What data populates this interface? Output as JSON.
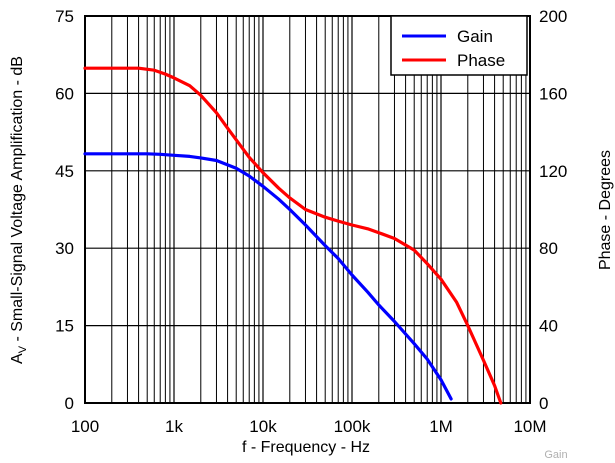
{
  "chart_data": {
    "type": "line",
    "xlabel": "f - Frequency - Hz",
    "ylabel_left": "A",
    "ylabel_left_sub": "V",
    "ylabel_left_rest": " - Small-Signal Voltage Amplification - dB",
    "ylabel_right": "Phase - Degrees",
    "x_scale": "log",
    "xlim": [
      100,
      10000000
    ],
    "ylim_left": [
      0,
      75
    ],
    "ylim_right": [
      0,
      200
    ],
    "x_ticks": [
      {
        "value": 100,
        "label": "100"
      },
      {
        "value": 1000,
        "label": "1k"
      },
      {
        "value": 10000,
        "label": "10k"
      },
      {
        "value": 100000,
        "label": "100k"
      },
      {
        "value": 1000000,
        "label": "1M"
      },
      {
        "value": 10000000,
        "label": "10M"
      }
    ],
    "y_ticks_left": [
      0,
      15,
      30,
      45,
      60,
      75
    ],
    "y_ticks_right": [
      0,
      40,
      80,
      120,
      160,
      200
    ],
    "grid": true,
    "legend_position": "top-right",
    "series": [
      {
        "name": "Gain",
        "axis": "left",
        "color": "#0000ff",
        "points": [
          [
            100,
            48.3
          ],
          [
            200,
            48.3
          ],
          [
            500,
            48.3
          ],
          [
            700,
            48.2
          ],
          [
            1000,
            48.0
          ],
          [
            1500,
            47.8
          ],
          [
            2000,
            47.5
          ],
          [
            3000,
            47.0
          ],
          [
            5000,
            45.5
          ],
          [
            7000,
            44.0
          ],
          [
            10000,
            42.0
          ],
          [
            15000,
            39.5
          ],
          [
            20000,
            37.5
          ],
          [
            30000,
            34.5
          ],
          [
            50000,
            30.5
          ],
          [
            70000,
            28.0
          ],
          [
            100000,
            24.8
          ],
          [
            150000,
            21.5
          ],
          [
            200000,
            19.0
          ],
          [
            300000,
            15.8
          ],
          [
            500000,
            11.5
          ],
          [
            700000,
            8.5
          ],
          [
            1000000,
            4.5
          ],
          [
            1300000,
            0.8
          ]
        ]
      },
      {
        "name": "Phase",
        "axis": "right",
        "color": "#ff0000",
        "points": [
          [
            100,
            173
          ],
          [
            200,
            173
          ],
          [
            400,
            173
          ],
          [
            600,
            172
          ],
          [
            800,
            170
          ],
          [
            1000,
            168
          ],
          [
            1500,
            164
          ],
          [
            2000,
            159
          ],
          [
            3000,
            150
          ],
          [
            4000,
            142
          ],
          [
            5000,
            136
          ],
          [
            7000,
            127
          ],
          [
            10000,
            119
          ],
          [
            15000,
            111
          ],
          [
            20000,
            106
          ],
          [
            30000,
            100
          ],
          [
            50000,
            96
          ],
          [
            70000,
            94
          ],
          [
            100000,
            92
          ],
          [
            150000,
            90
          ],
          [
            200000,
            88
          ],
          [
            300000,
            85
          ],
          [
            500000,
            79
          ],
          [
            700000,
            72
          ],
          [
            1000000,
            64
          ],
          [
            1500000,
            52
          ],
          [
            2000000,
            40
          ],
          [
            3000000,
            22
          ],
          [
            4000000,
            9
          ],
          [
            4700000,
            0
          ]
        ]
      }
    ]
  },
  "credit": "Gain"
}
